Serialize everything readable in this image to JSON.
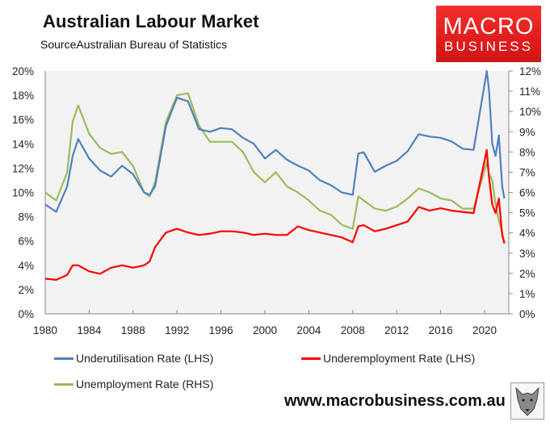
{
  "header": {
    "title": "Australian Labour Market",
    "subtitle": "SourceAustralian Bureau of Statistics"
  },
  "logo": {
    "line1": "MACRO",
    "line2": "BUSINESS",
    "color": "#e11d1d"
  },
  "footer": {
    "url_text": "www.macrobusiness.com.au"
  },
  "legend": [
    {
      "label": "Underutilisation Rate (LHS)",
      "color": "#4f81bd"
    },
    {
      "label": "Underemployment Rate (LHS)",
      "color": "#ff0000"
    },
    {
      "label": "Unemployment Rate (RHS)",
      "color": "#9bbb59"
    }
  ],
  "axes": {
    "left_ticks": [
      "0%",
      "2%",
      "4%",
      "6%",
      "8%",
      "10%",
      "12%",
      "14%",
      "16%",
      "18%",
      "20%"
    ],
    "right_ticks": [
      "0%",
      "1%",
      "2%",
      "3%",
      "4%",
      "5%",
      "6%",
      "7%",
      "8%",
      "9%",
      "10%",
      "11%",
      "12%"
    ],
    "x_ticks": [
      "1980",
      "1984",
      "1988",
      "1992",
      "1996",
      "2000",
      "2004",
      "2008",
      "2012",
      "2016",
      "2020"
    ]
  },
  "chart_data": {
    "type": "line",
    "title": "Australian Labour Market",
    "subtitle": "SourceAustralian Bureau of Statistics",
    "xlabel": "",
    "ylabel_left": "Rate (LHS)",
    "ylabel_right": "Unemployment Rate (RHS)",
    "ylim_left": [
      0,
      20
    ],
    "ylim_right": [
      0,
      12
    ],
    "xlim": [
      1980,
      2021.8
    ],
    "grid": false,
    "legend_position": "bottom",
    "x": [
      1980,
      1981,
      1982,
      1982.5,
      1983,
      1984,
      1985,
      1986,
      1987,
      1988,
      1989,
      1989.5,
      1990,
      1991,
      1992,
      1993,
      1994,
      1995,
      1996,
      1997,
      1998,
      1999,
      2000,
      2001,
      2002,
      2003,
      2004,
      2005,
      2006,
      2007,
      2008,
      2008.5,
      2009,
      2010,
      2011,
      2012,
      2013,
      2014,
      2015,
      2016,
      2017,
      2018,
      2019,
      2020.2,
      2020.4,
      2020.7,
      2021,
      2021.3,
      2021.6,
      2021.8
    ],
    "series": [
      {
        "name": "Underutilisation Rate (LHS)",
        "axis": "left",
        "color": "#4f81bd",
        "values": [
          9.0,
          8.4,
          10.5,
          13.0,
          14.4,
          12.8,
          11.8,
          11.3,
          12.2,
          11.5,
          10.0,
          9.8,
          10.5,
          15.5,
          17.8,
          17.5,
          15.2,
          15.0,
          15.3,
          15.2,
          14.5,
          14.0,
          12.8,
          13.5,
          12.7,
          12.2,
          11.8,
          11.0,
          10.6,
          10.0,
          9.8,
          13.2,
          13.3,
          11.7,
          12.2,
          12.6,
          13.4,
          14.8,
          14.6,
          14.5,
          14.2,
          13.6,
          13.5,
          20.0,
          18.5,
          14.0,
          13.0,
          14.7,
          10.5,
          9.5
        ]
      },
      {
        "name": "Underemployment Rate (LHS)",
        "axis": "left",
        "color": "#ff0000",
        "values": [
          2.9,
          2.8,
          3.2,
          4.0,
          4.0,
          3.5,
          3.3,
          3.8,
          4.0,
          3.8,
          4.0,
          4.3,
          5.5,
          6.7,
          7.0,
          6.7,
          6.5,
          6.6,
          6.8,
          6.8,
          6.7,
          6.5,
          6.6,
          6.5,
          6.5,
          7.2,
          6.9,
          6.7,
          6.5,
          6.3,
          5.9,
          7.2,
          7.3,
          6.8,
          7.0,
          7.3,
          7.6,
          8.8,
          8.5,
          8.7,
          8.5,
          8.4,
          8.3,
          13.5,
          11.3,
          9.0,
          8.3,
          9.5,
          6.5,
          5.8
        ]
      },
      {
        "name": "Unemployment Rate (RHS)",
        "axis": "right",
        "color": "#9bbb59",
        "values": [
          6.0,
          5.6,
          7.0,
          9.5,
          10.3,
          8.9,
          8.2,
          7.9,
          8.0,
          7.3,
          6.0,
          5.8,
          6.5,
          9.5,
          10.8,
          10.9,
          9.3,
          8.5,
          8.5,
          8.5,
          8.0,
          7.0,
          6.5,
          7.0,
          6.3,
          6.0,
          5.6,
          5.1,
          4.9,
          4.4,
          4.2,
          5.8,
          5.6,
          5.2,
          5.1,
          5.3,
          5.7,
          6.2,
          6.0,
          5.7,
          5.6,
          5.2,
          5.2,
          7.5,
          6.9,
          6.6,
          5.4,
          4.6,
          4.0,
          3.5
        ]
      }
    ]
  }
}
